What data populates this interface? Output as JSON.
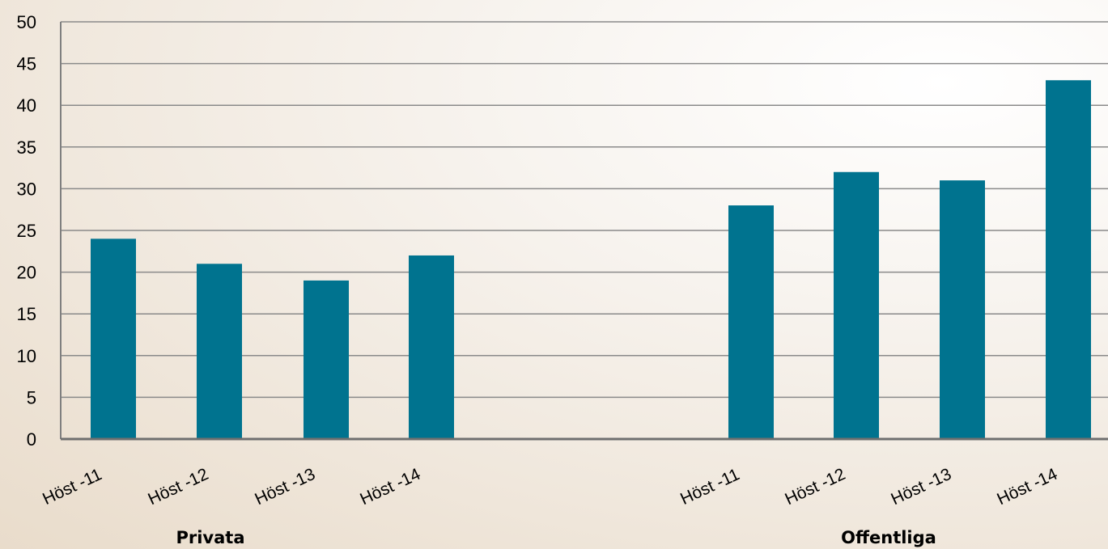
{
  "chart_data": {
    "type": "bar",
    "title": "",
    "xlabel": "",
    "ylabel": "",
    "ylim": [
      0,
      50
    ],
    "yticks": [
      0,
      5,
      10,
      15,
      20,
      25,
      30,
      35,
      40,
      45,
      50
    ],
    "grid": true,
    "legend": "none",
    "bar_color": "#00738f",
    "groups": [
      {
        "label": "Privata",
        "categories": [
          "Höst -11",
          "Höst -12",
          "Höst -13",
          "Höst -14"
        ],
        "values": [
          24,
          21,
          19,
          22
        ]
      },
      {
        "label": "Offentliga",
        "categories": [
          "Höst -11",
          "Höst -12",
          "Höst -13",
          "Höst -14"
        ],
        "values": [
          28,
          32,
          31,
          43
        ]
      }
    ]
  }
}
